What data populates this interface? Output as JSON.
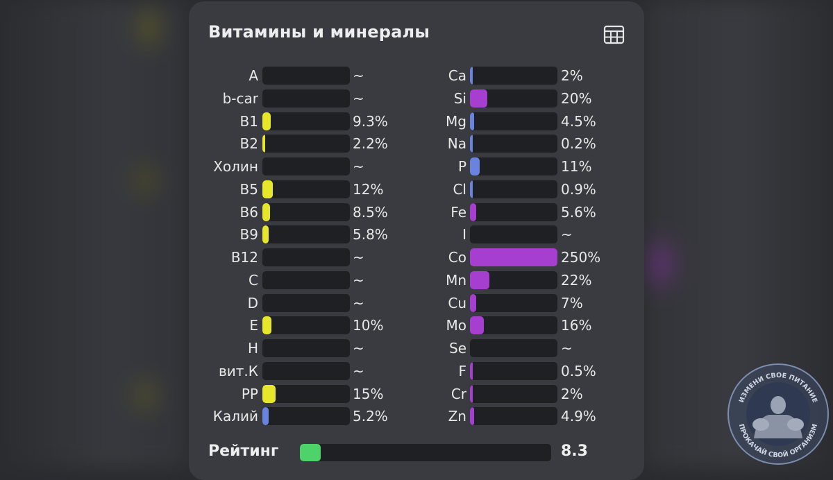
{
  "title": "Витамины и минералы",
  "colors": {
    "vitamin_fill": "#e6e62a",
    "mineral_fill": "#a63fcf",
    "blue_fill": "#6a83df",
    "rating_fill": "#4ed36a"
  },
  "vitamins": [
    {
      "label": "A",
      "value": "~",
      "fill": 0,
      "color": "vitamin"
    },
    {
      "label": "b-car",
      "value": "~",
      "fill": 0,
      "color": "vitamin"
    },
    {
      "label": "B1",
      "value": "9.3%",
      "fill": 0.093,
      "color": "vitamin"
    },
    {
      "label": "B2",
      "value": "2.2%",
      "fill": 0.022,
      "color": "vitamin"
    },
    {
      "label": "Холин",
      "value": "~",
      "fill": 0,
      "color": "vitamin"
    },
    {
      "label": "B5",
      "value": "12%",
      "fill": 0.12,
      "color": "vitamin"
    },
    {
      "label": "B6",
      "value": "8.5%",
      "fill": 0.085,
      "color": "vitamin"
    },
    {
      "label": "B9",
      "value": "5.8%",
      "fill": 0.058,
      "color": "vitamin"
    },
    {
      "label": "B12",
      "value": "~",
      "fill": 0,
      "color": "vitamin"
    },
    {
      "label": "C",
      "value": "~",
      "fill": 0,
      "color": "vitamin"
    },
    {
      "label": "D",
      "value": "~",
      "fill": 0,
      "color": "vitamin"
    },
    {
      "label": "E",
      "value": "10%",
      "fill": 0.1,
      "color": "vitamin"
    },
    {
      "label": "H",
      "value": "~",
      "fill": 0,
      "color": "vitamin"
    },
    {
      "label": "вит.К",
      "value": "~",
      "fill": 0,
      "color": "vitamin"
    },
    {
      "label": "PP",
      "value": "15%",
      "fill": 0.15,
      "color": "vitamin"
    },
    {
      "label": "Калий",
      "value": "5.2%",
      "fill": 0.052,
      "color": "blue"
    }
  ],
  "minerals": [
    {
      "label": "Ca",
      "value": "2%",
      "fill": 0.02,
      "color": "blue"
    },
    {
      "label": "Si",
      "value": "20%",
      "fill": 0.2,
      "color": "mineral"
    },
    {
      "label": "Mg",
      "value": "4.5%",
      "fill": 0.045,
      "color": "blue"
    },
    {
      "label": "Na",
      "value": "0.2%",
      "fill": 0.002,
      "color": "blue"
    },
    {
      "label": "P",
      "value": "11%",
      "fill": 0.11,
      "color": "blue"
    },
    {
      "label": "Cl",
      "value": "0.9%",
      "fill": 0.009,
      "color": "blue"
    },
    {
      "label": "Fe",
      "value": "5.6%",
      "fill": 0.056,
      "color": "mineral"
    },
    {
      "label": "I",
      "value": "~",
      "fill": 0,
      "color": "mineral"
    },
    {
      "label": "Co",
      "value": "250%",
      "fill": 1.0,
      "color": "mineral"
    },
    {
      "label": "Mn",
      "value": "22%",
      "fill": 0.22,
      "color": "mineral"
    },
    {
      "label": "Cu",
      "value": "7%",
      "fill": 0.07,
      "color": "mineral"
    },
    {
      "label": "Mo",
      "value": "16%",
      "fill": 0.16,
      "color": "mineral"
    },
    {
      "label": "Se",
      "value": "~",
      "fill": 0,
      "color": "mineral"
    },
    {
      "label": "F",
      "value": "0.5%",
      "fill": 0.005,
      "color": "mineral"
    },
    {
      "label": "Cr",
      "value": "2%",
      "fill": 0.02,
      "color": "mineral"
    },
    {
      "label": "Zn",
      "value": "4.9%",
      "fill": 0.049,
      "color": "mineral"
    }
  ],
  "rating": {
    "label": "Рейтинг",
    "value": "8.3",
    "fill": 0.083
  },
  "watermark": {
    "top_text": "ИЗМЕНИ СВОЕ ПИТАНИЕ",
    "bottom_text": "ПРОКАЧАЙ СВОЙ ОРГАНИЗМ"
  }
}
